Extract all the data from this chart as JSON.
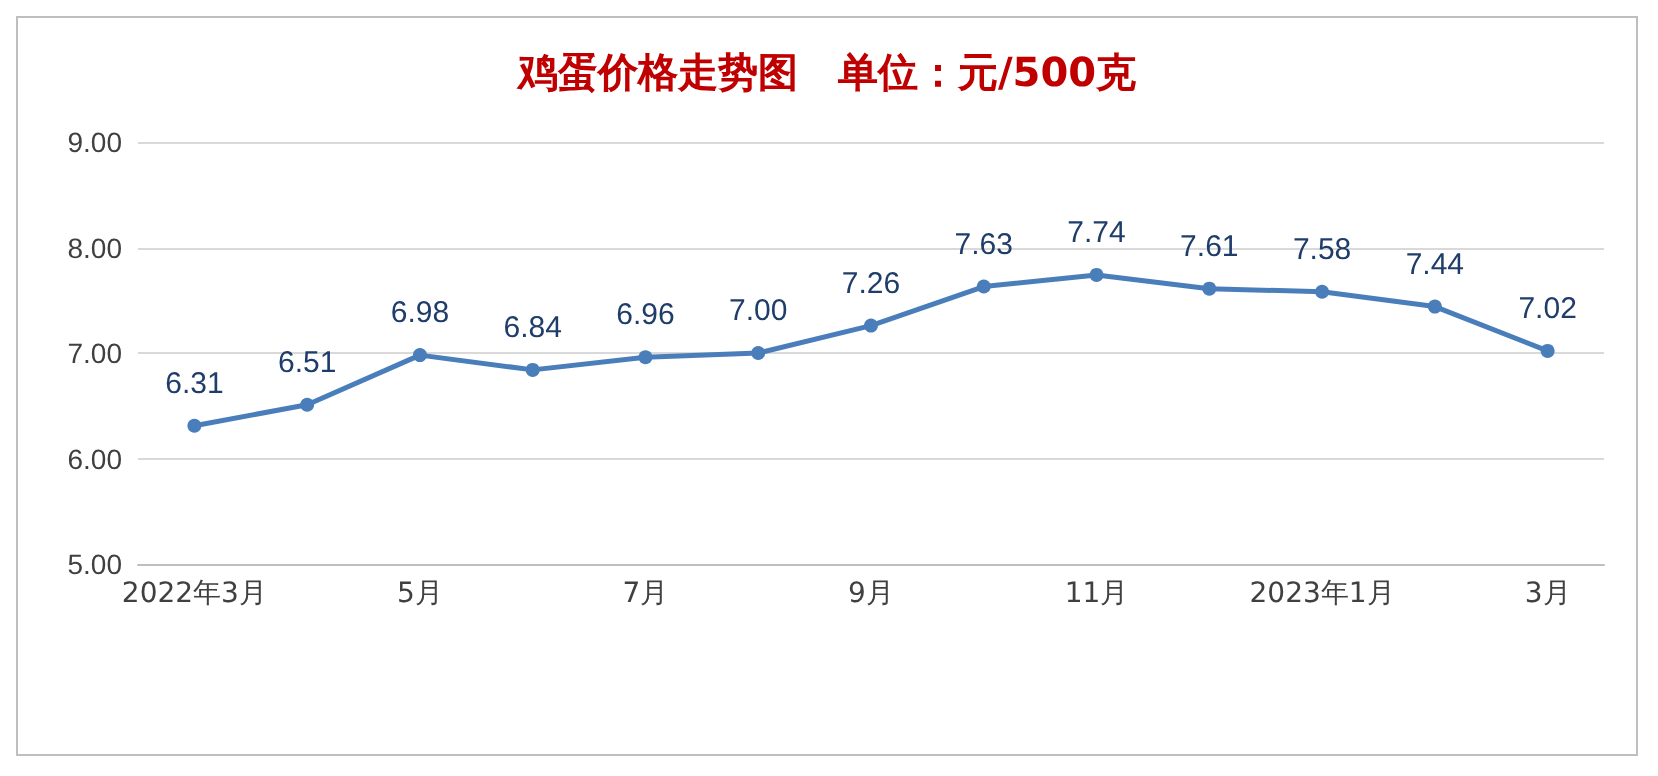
{
  "chart_data": {
    "type": "line",
    "title": "鸡蛋价格走势图　单位：元/500克",
    "categories": [
      "2022年3月",
      null,
      "5月",
      null,
      "7月",
      null,
      "9月",
      null,
      "11月",
      null,
      "2023年1月",
      null,
      "3月"
    ],
    "series": [
      {
        "color": "#4a7ebb",
        "values": [
          6.31,
          6.51,
          6.98,
          6.84,
          6.96,
          7.0,
          7.26,
          7.63,
          7.74,
          7.61,
          7.58,
          7.44,
          7.02
        ],
        "value_labels": [
          "6.31",
          "6.51",
          "6.98",
          "6.84",
          "6.96",
          "7.00",
          "7.26",
          "7.63",
          "7.74",
          "7.61",
          "7.58",
          "7.44",
          "7.02"
        ]
      }
    ],
    "ylim": [
      5,
      9
    ],
    "yticks": [
      {
        "value": 5,
        "label": "5.00"
      },
      {
        "value": 6,
        "label": "6.00"
      },
      {
        "value": 7,
        "label": "7.00"
      },
      {
        "value": 8,
        "label": "8.00"
      },
      {
        "value": 9,
        "label": "9.00"
      }
    ],
    "grid": "y",
    "marker": "circle",
    "line_style": "solid"
  }
}
